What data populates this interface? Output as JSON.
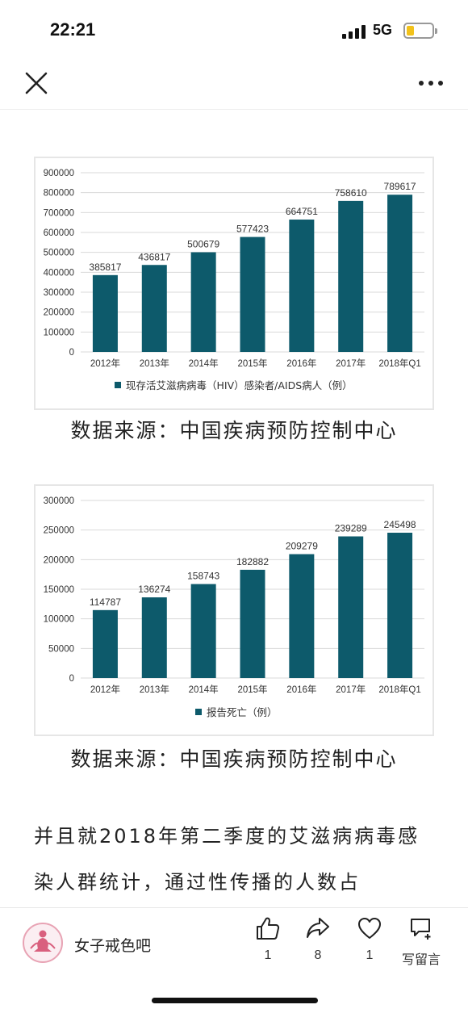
{
  "status": {
    "time": "22:21",
    "network": "5G",
    "battery_color": "#f2c21b"
  },
  "nav": {
    "close_icon": "close-icon",
    "more_icon": "more-icon"
  },
  "chart_data": [
    {
      "type": "bar",
      "categories": [
        "2012年",
        "2013年",
        "2014年",
        "2015年",
        "2016年",
        "2017年",
        "2018年Q1"
      ],
      "series": [
        {
          "name": "现存活艾滋病病毒（HIV）感染者/AIDS病人（例）",
          "values": [
            385817,
            436817,
            500679,
            577423,
            664751,
            758610,
            789617
          ]
        }
      ],
      "yticks": [
        "0",
        "100000",
        "200000",
        "300000",
        "400000",
        "500000",
        "600000",
        "700000",
        "800000",
        "900000"
      ],
      "ylim": [
        0,
        900000
      ],
      "grid": true,
      "legend": "bottom",
      "bar_color": "#0d5a6b"
    },
    {
      "type": "bar",
      "categories": [
        "2012年",
        "2013年",
        "2014年",
        "2015年",
        "2016年",
        "2017年",
        "2018年Q1"
      ],
      "series": [
        {
          "name": "报告死亡（例）",
          "values": [
            114787,
            136274,
            158743,
            182882,
            209279,
            239289,
            245498
          ]
        }
      ],
      "yticks": [
        "0",
        "50000",
        "100000",
        "150000",
        "200000",
        "250000",
        "300000"
      ],
      "ylim": [
        0,
        300000
      ],
      "grid": true,
      "legend": "bottom",
      "bar_color": "#0d5a6b"
    }
  ],
  "captions": [
    "数据来源：中国疾病预防控制中心",
    "数据来源：中国疾病预防控制中心"
  ],
  "body_text": [
    "并且就2018年第二季度的艾滋病病毒感",
    "染人群统计，通过性传播的人数占"
  ],
  "bottom": {
    "author": "女子戒色吧",
    "like_count": "1",
    "share_count": "8",
    "favorite_count": "1",
    "comment_label": "写留言"
  }
}
